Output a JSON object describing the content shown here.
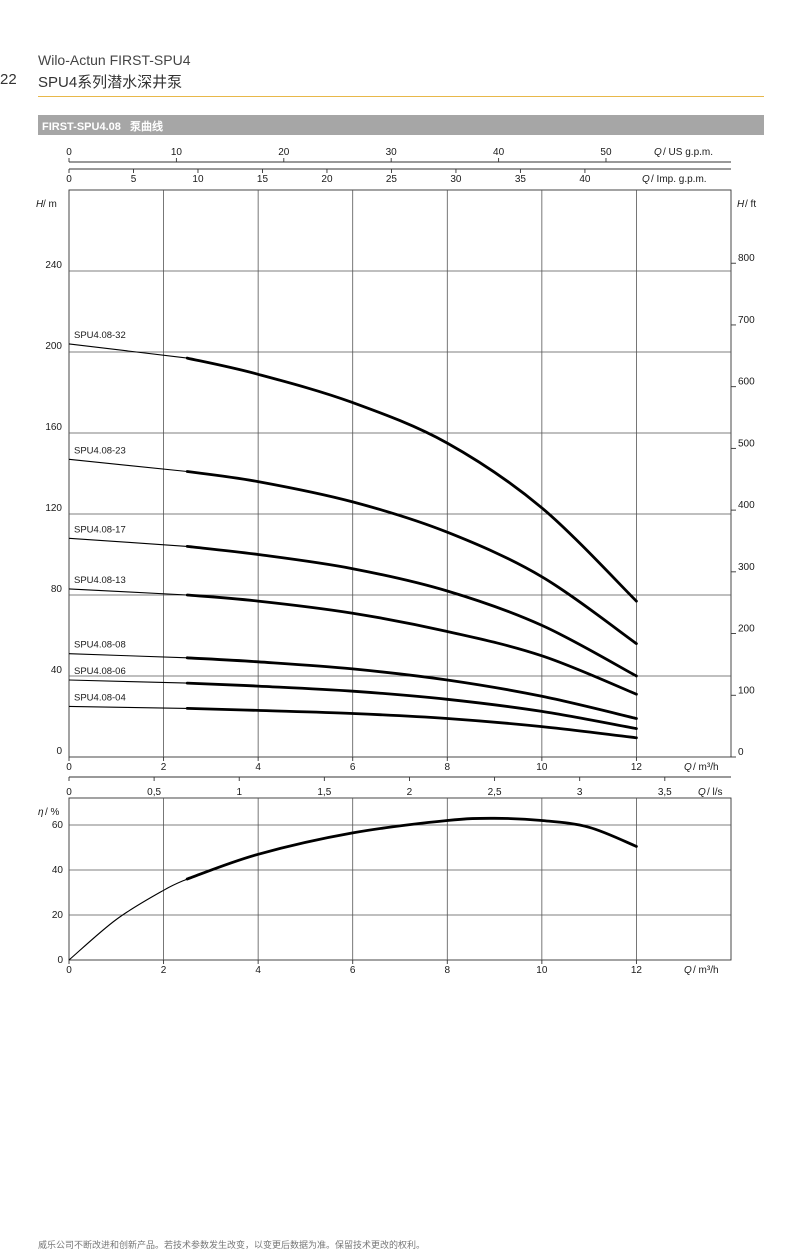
{
  "header": {
    "page_number": "22",
    "title": "Wilo-Actun FIRST-SPU4",
    "subtitle": "SPU4系列潜水深井泵"
  },
  "section": {
    "label": "FIRST-SPU4.08   泵曲线"
  },
  "footer": {
    "note": "威乐公司不断改进和创新产品。若技术参数发生改变，以变更后数据为准。保留技术更改的权利。"
  },
  "colors": {
    "accent_rule": "#e8b84a",
    "section_bar": "#a6a6a6",
    "grid": "#555555",
    "curve": "#000000"
  },
  "chart_data": [
    {
      "type": "line",
      "title": "",
      "xlabel": "Q / m³/h",
      "ylabel": "H / m",
      "ylabel_right": "H / ft",
      "xlabel_top_us": "Q / US g.p.m.",
      "xlabel_top_imp": "Q / Imp. g.p.m.",
      "xlabel_bottom_ls": "Q / l/s",
      "xlim": [
        0,
        14
      ],
      "ylim": [
        0,
        280
      ],
      "grid": true,
      "x_ticks": [
        "0",
        "2",
        "4",
        "6",
        "8",
        "10",
        "12"
      ],
      "y_ticks": [
        "0",
        "40",
        "80",
        "120",
        "160",
        "200",
        "240"
      ],
      "ft_ticks": [
        "0",
        "100",
        "200",
        "300",
        "400",
        "500",
        "600",
        "700",
        "800"
      ],
      "us_gpm_ticks": [
        "0",
        "10",
        "20",
        "30",
        "40",
        "50"
      ],
      "imp_gpm_ticks": [
        "0",
        "5",
        "10",
        "15",
        "20",
        "25",
        "30",
        "35",
        "40"
      ],
      "ls_ticks": [
        "0",
        "0,5",
        "1",
        "1,5",
        "2",
        "2,5",
        "3",
        "3,5"
      ],
      "operating_range_start": 2.5,
      "series": [
        {
          "name": "SPU4.08-32",
          "x": [
            0,
            2.5,
            4,
            6,
            8,
            10,
            12
          ],
          "values": [
            204,
            197,
            189,
            175,
            155,
            123,
            77
          ]
        },
        {
          "name": "SPU4.08-23",
          "x": [
            0,
            2.5,
            4,
            6,
            8,
            10,
            12
          ],
          "values": [
            147,
            141,
            136,
            126,
            111,
            89,
            56
          ]
        },
        {
          "name": "SPU4.08-17",
          "x": [
            0,
            2.5,
            4,
            6,
            8,
            10,
            12
          ],
          "values": [
            108,
            104,
            100,
            93,
            82,
            65,
            40
          ]
        },
        {
          "name": "SPU4.08-13",
          "x": [
            0,
            2.5,
            4,
            6,
            8,
            10,
            12
          ],
          "values": [
            83,
            80,
            77,
            71,
            62,
            50,
            31
          ]
        },
        {
          "name": "SPU4.08-08",
          "x": [
            0,
            2.5,
            4,
            6,
            8,
            10,
            12
          ],
          "values": [
            51,
            49,
            47,
            43.5,
            38,
            30,
            19
          ]
        },
        {
          "name": "SPU4.08-06",
          "x": [
            0,
            2.5,
            4,
            6,
            8,
            10,
            12
          ],
          "values": [
            38,
            36.5,
            35,
            32.5,
            28.5,
            22.5,
            14
          ]
        },
        {
          "name": "SPU4.08-04",
          "x": [
            0,
            2.5,
            4,
            6,
            8,
            10,
            12
          ],
          "values": [
            25,
            24,
            23,
            21.5,
            19,
            15,
            9.5
          ]
        }
      ]
    },
    {
      "type": "line",
      "title": "",
      "xlabel": "Q / m³/h",
      "ylabel": "η / %",
      "xlim": [
        0,
        14
      ],
      "ylim": [
        0,
        72
      ],
      "grid": true,
      "x_ticks": [
        "0",
        "2",
        "4",
        "6",
        "8",
        "10",
        "12"
      ],
      "y_ticks": [
        "0",
        "20",
        "40",
        "60"
      ],
      "operating_range_start": 2.5,
      "series": [
        {
          "x": [
            0,
            1,
            2,
            2.5,
            4,
            6,
            8,
            9,
            10,
            11,
            12
          ],
          "values": [
            0,
            18,
            31,
            36,
            47,
            56.5,
            62,
            63,
            62,
            59,
            50.5
          ]
        }
      ]
    }
  ]
}
